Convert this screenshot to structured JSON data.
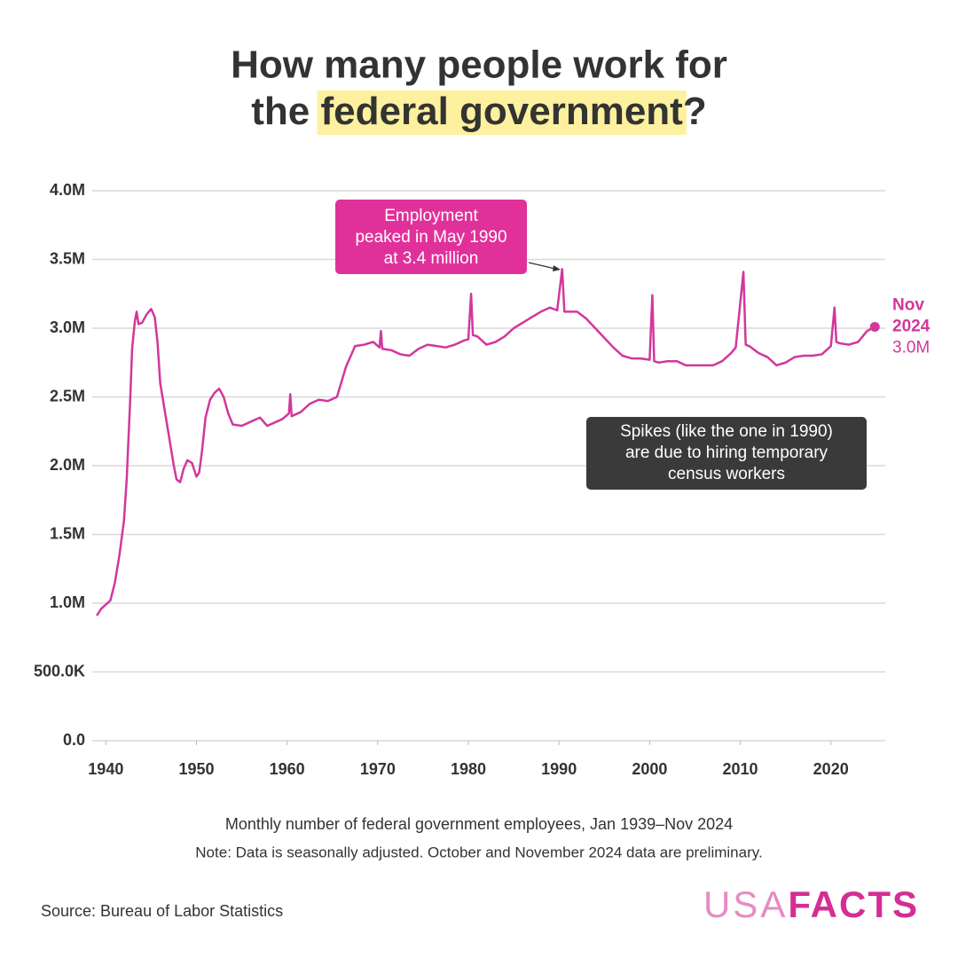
{
  "chart_data": {
    "type": "line",
    "title": {
      "line1": "How many people work for",
      "line2_before": "the ",
      "highlight": "federal government",
      "line2_after": "?"
    },
    "subtitle": "Monthly number of federal government employees, Jan 1939–Nov 2024",
    "note": "Note: Data is seasonally adjusted. October and November 2024 data are preliminary.",
    "source": "Source: Bureau of Labor Statistics",
    "logo": {
      "left": "USA",
      "right": "FACTS"
    },
    "annotations": {
      "peak": [
        "Employment",
        "peaked in May 1990",
        "at 3.4 million"
      ],
      "spikes": [
        "Spikes (like the one in 1990)",
        "are due to hiring temporary",
        "census workers"
      ]
    },
    "end_label": {
      "month": "Nov",
      "year": "2024",
      "value_label": "3.0M"
    },
    "xlim": [
      1938.5,
      2026
    ],
    "ylim": [
      0,
      4000000
    ],
    "xticks": [
      1940,
      1950,
      1960,
      1970,
      1980,
      1990,
      2000,
      2010,
      2020
    ],
    "yticks": [
      {
        "value": 0,
        "label": "0.0"
      },
      {
        "value": 500000,
        "label": "500.0K"
      },
      {
        "value": 1000000,
        "label": "1.0M"
      },
      {
        "value": 1500000,
        "label": "1.5M"
      },
      {
        "value": 2000000,
        "label": "2.0M"
      },
      {
        "value": 2500000,
        "label": "2.5M"
      },
      {
        "value": 3000000,
        "label": "3.0M"
      },
      {
        "value": 3500000,
        "label": "3.5M"
      },
      {
        "value": 4000000,
        "label": "4.0M"
      }
    ],
    "grid": true,
    "series": [
      {
        "name": "Federal government employees",
        "color": "#d2379b",
        "x": [
          1939.0,
          1939.5,
          1940.0,
          1940.5,
          1941.0,
          1941.5,
          1942.0,
          1942.3,
          1942.7,
          1942.9,
          1943.2,
          1943.4,
          1943.6,
          1944.0,
          1944.5,
          1945.0,
          1945.4,
          1945.7,
          1946.0,
          1946.5,
          1947.0,
          1947.5,
          1947.8,
          1948.2,
          1948.6,
          1949.0,
          1949.5,
          1950.0,
          1950.3,
          1950.6,
          1951.0,
          1951.5,
          1952.0,
          1952.5,
          1953.0,
          1953.5,
          1954.0,
          1955.0,
          1956.0,
          1957.0,
          1957.8,
          1958.5,
          1959.5,
          1960.2,
          1960.35,
          1960.5,
          1961.5,
          1962.5,
          1963.5,
          1964.5,
          1965.5,
          1966.5,
          1967.5,
          1968.5,
          1969.5,
          1970.2,
          1970.35,
          1970.5,
          1971.5,
          1972.5,
          1973.5,
          1974.5,
          1975.5,
          1976.5,
          1977.5,
          1978.5,
          1979.5,
          1980.0,
          1980.3,
          1980.5,
          1981.0,
          1982.0,
          1983.0,
          1984.0,
          1985.0,
          1986.0,
          1987.0,
          1988.0,
          1989.0,
          1989.8,
          1990.35,
          1990.6,
          1991.0,
          1992.0,
          1993.0,
          1994.0,
          1995.0,
          1996.0,
          1997.0,
          1998.0,
          1999.0,
          2000.0,
          2000.3,
          2000.5,
          2001.0,
          2002.0,
          2003.0,
          2004.0,
          2005.0,
          2006.0,
          2007.0,
          2008.0,
          2009.0,
          2009.5,
          2010.35,
          2010.6,
          2011.0,
          2012.0,
          2013.0,
          2014.0,
          2015.0,
          2016.0,
          2017.0,
          2018.0,
          2019.0,
          2020.0,
          2020.4,
          2020.6,
          2021.0,
          2022.0,
          2023.0,
          2024.0,
          2024.85
        ],
        "values": [
          910000,
          960000,
          990000,
          1020000,
          1150000,
          1350000,
          1600000,
          1900000,
          2500000,
          2850000,
          3050000,
          3120000,
          3030000,
          3040000,
          3100000,
          3140000,
          3080000,
          2900000,
          2600000,
          2400000,
          2200000,
          2000000,
          1900000,
          1880000,
          1980000,
          2040000,
          2020000,
          1920000,
          1950000,
          2100000,
          2350000,
          2480000,
          2530000,
          2560000,
          2500000,
          2380000,
          2300000,
          2290000,
          2320000,
          2350000,
          2290000,
          2310000,
          2340000,
          2380000,
          2520000,
          2360000,
          2390000,
          2450000,
          2480000,
          2470000,
          2500000,
          2720000,
          2870000,
          2880000,
          2900000,
          2860000,
          2980000,
          2850000,
          2840000,
          2810000,
          2800000,
          2850000,
          2880000,
          2870000,
          2860000,
          2880000,
          2910000,
          2920000,
          3250000,
          2950000,
          2940000,
          2880000,
          2900000,
          2940000,
          3000000,
          3040000,
          3080000,
          3120000,
          3150000,
          3130000,
          3430000,
          3120000,
          3120000,
          3120000,
          3070000,
          3000000,
          2930000,
          2860000,
          2800000,
          2780000,
          2780000,
          2770000,
          3240000,
          2760000,
          2750000,
          2760000,
          2760000,
          2730000,
          2730000,
          2730000,
          2730000,
          2760000,
          2820000,
          2860000,
          3410000,
          2880000,
          2870000,
          2820000,
          2790000,
          2730000,
          2750000,
          2790000,
          2800000,
          2800000,
          2810000,
          2870000,
          3150000,
          2900000,
          2890000,
          2880000,
          2900000,
          2980000,
          3010000
        ]
      }
    ]
  }
}
